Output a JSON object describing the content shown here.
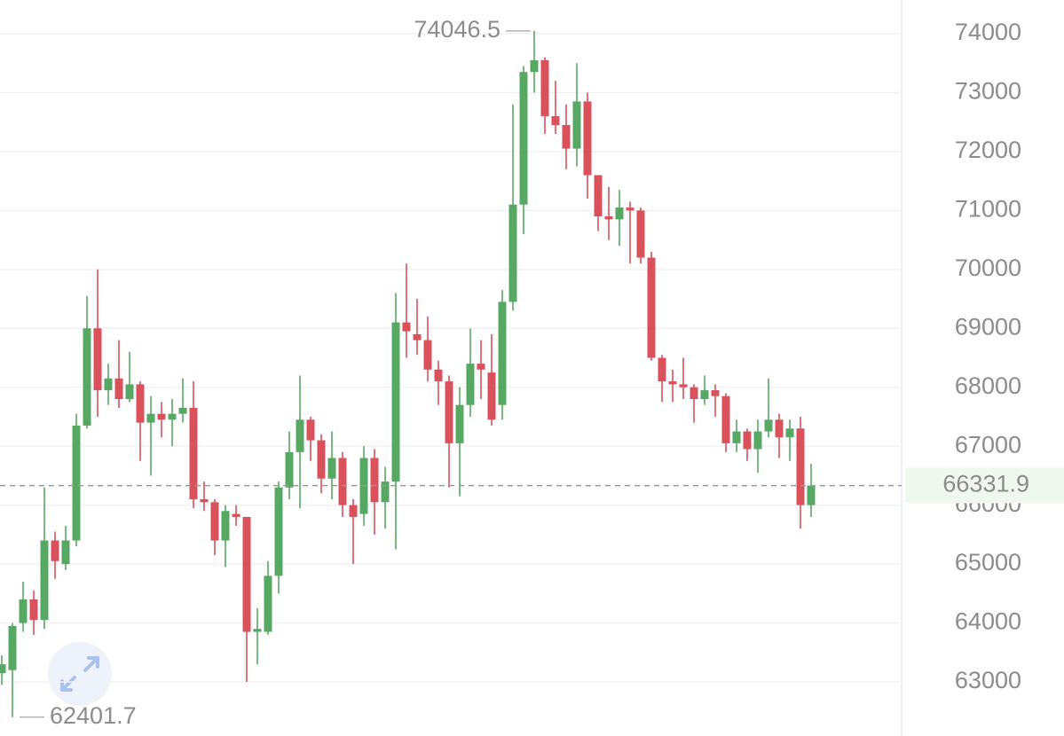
{
  "chart_data": {
    "type": "candlestick",
    "open": [
      63150,
      63200,
      64000,
      64400,
      64050,
      65400,
      65000,
      65400,
      67350,
      69000,
      67950,
      68150,
      67800,
      68050,
      67400,
      67550,
      67450,
      67550,
      67650,
      66100,
      66050,
      65400,
      65850,
      65800,
      63850,
      63850,
      64800,
      66300,
      66900,
      67450,
      67100,
      66450,
      66800,
      66000,
      65850,
      66800,
      66050,
      66400,
      69100,
      68900,
      68800,
      68300,
      68100,
      67050,
      67700,
      68400,
      68250,
      67700,
      69450,
      71100,
      73350,
      73550,
      72600,
      72450,
      72050,
      72850,
      71600,
      70900,
      70850,
      71050,
      71000,
      70200,
      68500,
      68100,
      68050,
      68000,
      67800,
      67950,
      67850,
      67050,
      67250,
      66950,
      67250,
      67450,
      67150,
      67300,
      66000
    ],
    "high": [
      63450,
      64000,
      64700,
      64550,
      66300,
      65550,
      65650,
      67550,
      69550,
      70000,
      68400,
      68800,
      68600,
      68100,
      67850,
      67750,
      67800,
      68150,
      68100,
      66400,
      66100,
      66000,
      66000,
      65800,
      64250,
      65050,
      66400,
      67250,
      68200,
      67500,
      67200,
      67250,
      66900,
      66100,
      67000,
      66950,
      66650,
      69600,
      70100,
      69500,
      69200,
      68450,
      68200,
      68000,
      69000,
      68800,
      68900,
      69650,
      72800,
      73450,
      74046.5,
      73600,
      73200,
      72800,
      73500,
      73000,
      71600,
      71400,
      71350,
      71150,
      71050,
      70300,
      68550,
      68300,
      68500,
      68050,
      68200,
      68050,
      67900,
      67450,
      67300,
      67450,
      68150,
      67550,
      67450,
      67500,
      66700
    ],
    "low": [
      62950,
      62401.7,
      63850,
      63800,
      63900,
      64750,
      64900,
      65300,
      67300,
      67500,
      67700,
      67650,
      67750,
      66750,
      66500,
      67150,
      67000,
      67400,
      65950,
      65900,
      65150,
      64950,
      65650,
      63000,
      63300,
      63800,
      64500,
      66100,
      65950,
      66750,
      66200,
      66100,
      65800,
      65000,
      65650,
      65500,
      65600,
      65250,
      68500,
      68550,
      68100,
      67700,
      66300,
      66150,
      67500,
      67800,
      67350,
      67450,
      69300,
      70600,
      73000,
      72300,
      72300,
      71700,
      71750,
      71200,
      70650,
      70500,
      70400,
      70100,
      70100,
      68450,
      67750,
      67750,
      67800,
      67400,
      67700,
      67500,
      66900,
      66900,
      66750,
      66550,
      67150,
      66800,
      66750,
      65600,
      65800
    ],
    "close": [
      63300,
      63950,
      64400,
      64050,
      65400,
      65050,
      65400,
      67350,
      69000,
      67950,
      68150,
      67800,
      68050,
      67400,
      67550,
      67450,
      67550,
      67650,
      66100,
      66050,
      65400,
      65900,
      65800,
      63850,
      63900,
      64800,
      66300,
      66900,
      67450,
      67100,
      66450,
      66800,
      66000,
      65800,
      66800,
      66050,
      66400,
      69100,
      68950,
      68800,
      68300,
      68100,
      67050,
      67700,
      68400,
      68300,
      67450,
      69450,
      71100,
      73350,
      73550,
      72600,
      72450,
      72050,
      72850,
      71600,
      70900,
      70850,
      71050,
      71000,
      70200,
      68500,
      68100,
      68050,
      68000,
      67800,
      67950,
      67850,
      67050,
      67250,
      66950,
      67250,
      67450,
      67150,
      67300,
      66000,
      66331.9
    ],
    "up_color": "#56a863",
    "down_color": "#d9515b",
    "ylim": [
      62082,
      74572
    ],
    "yticks": [
      63000,
      64000,
      65000,
      66000,
      67000,
      68000,
      69000,
      70000,
      71000,
      72000,
      73000,
      74000
    ],
    "grid": true
  }
}
